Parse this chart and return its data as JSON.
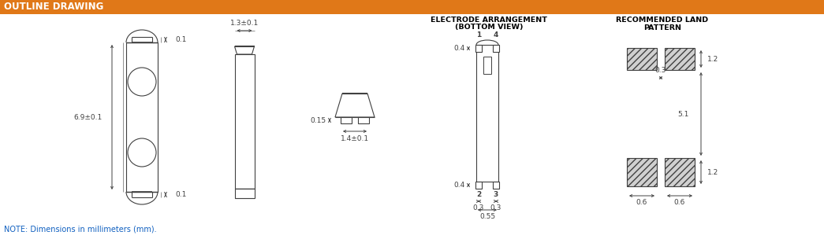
{
  "title": "OUTLINE DRAWING",
  "title_bg": "#E07818",
  "title_text_color": "white",
  "bg_color": "white",
  "line_color": "#404040",
  "dim_color": "#404040",
  "note_color": "#1060C0",
  "note_text": "NOTE: Dimensions in millimeters (mm).",
  "electrode_title1": "ELECTRODE ARRANGEMENT",
  "electrode_title2": "(BOTTOM VIEW)",
  "land_title1": "RECOMMENDED LAND",
  "land_title2": "PATTERN",
  "dim_font_size": 6.5,
  "label_font_size": 7.5,
  "title_font_size": 8.5
}
